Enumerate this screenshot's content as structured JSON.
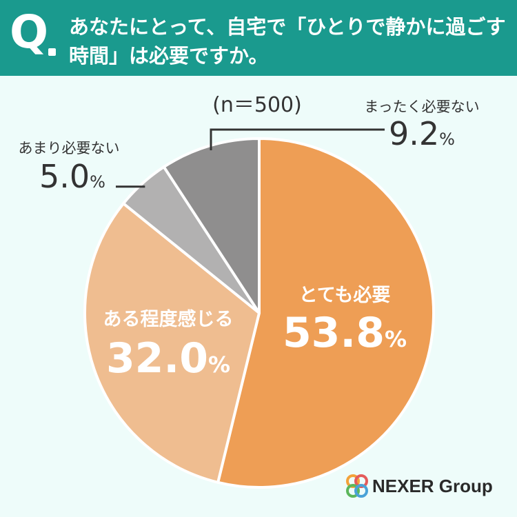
{
  "header": {
    "q_letter": "Q",
    "question": "あなたにとって、自宅で「ひとりで静かに過ごす時間」は必要ですか。"
  },
  "chart_data": {
    "type": "pie",
    "sample_size": "(n＝500)",
    "unit": "%",
    "slices": [
      {
        "label": "とても必要",
        "value": 53.8,
        "color": "#ee9e55"
      },
      {
        "label": "ある程度感じる",
        "value": 32.0,
        "color": "#efbd90"
      },
      {
        "label": "あまり必要ない",
        "value": 5.0,
        "color": "#b2b1b1"
      },
      {
        "label": "まったく必要ない",
        "value": 9.2,
        "color": "#8f8e8e"
      }
    ]
  },
  "logo": {
    "name": "NEXER Group"
  }
}
